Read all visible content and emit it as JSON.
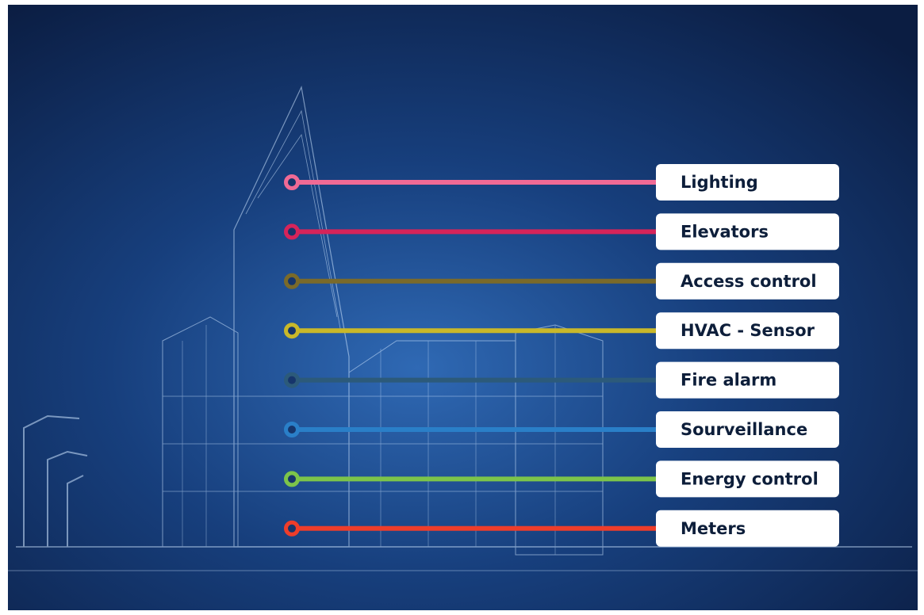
{
  "items": [
    {
      "label": "Lighting",
      "color": "#f06a95"
    },
    {
      "label": "Elevators",
      "color": "#d6245a"
    },
    {
      "label": "Access control",
      "color": "#7a6a2a"
    },
    {
      "label": "HVAC - Sensor",
      "color": "#c9b82a"
    },
    {
      "label": "Fire alarm",
      "color": "#2c5a7a"
    },
    {
      "label": "Sourveillance",
      "color": "#2a7fc8"
    },
    {
      "label": "Energy control",
      "color": "#7cc44a"
    },
    {
      "label": "Meters",
      "color": "#ee3d2a"
    }
  ]
}
